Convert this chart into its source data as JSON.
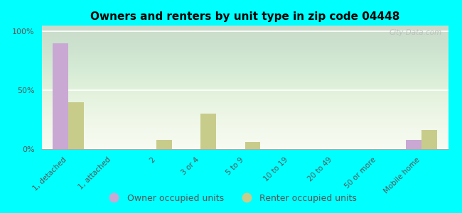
{
  "title": "Owners and renters by unit type in zip code 04448",
  "categories": [
    "1, detached",
    "1, attached",
    "2",
    "3 or 4",
    "5 to 9",
    "10 to 19",
    "20 to 49",
    "50 or more",
    "Mobile home"
  ],
  "owner_values": [
    90,
    0,
    0,
    0,
    0,
    0,
    0,
    0,
    8
  ],
  "renter_values": [
    40,
    0,
    8,
    30,
    6,
    0,
    0,
    0,
    16
  ],
  "owner_color": "#c9a8d4",
  "renter_color": "#c8cc8a",
  "background_color": "#00ffff",
  "ylabel_ticks": [
    "0%",
    "50%",
    "100%"
  ],
  "ytick_values": [
    0,
    50,
    100
  ],
  "ylim": [
    0,
    105
  ],
  "bar_width": 0.35,
  "legend_owner": "Owner occupied units",
  "legend_renter": "Renter occupied units",
  "watermark": "City-Data.com"
}
